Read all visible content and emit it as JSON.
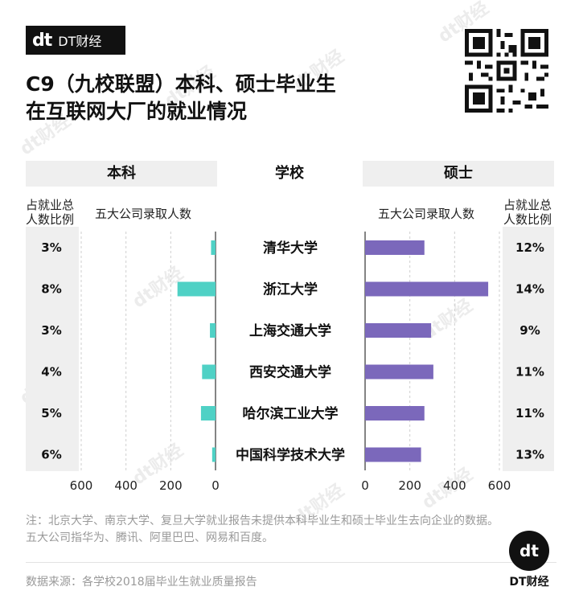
{
  "brand": {
    "mark": "dt",
    "name": "DT财经"
  },
  "title_lines": [
    "C9（九校联盟）本科、硕士毕业生",
    "在互联网大厂的就业情况"
  ],
  "watermark": "dt财经",
  "headers": {
    "left": "本科",
    "middle": "学校",
    "right": "硕士"
  },
  "subheaders": {
    "left_share_line1": "占就业总",
    "left_share_line2": "人数比例",
    "left_count": "五大公司录取人数",
    "right_count": "五大公司录取人数",
    "right_share_line1": "占就业总",
    "right_share_line2": "人数比例"
  },
  "colors": {
    "undergrad": "#4fd1c5",
    "master": "#7b68bb",
    "band": "#efefef"
  },
  "chart_data": {
    "type": "bar",
    "layout": "back-to-back",
    "categories": [
      "清华大学",
      "浙江大学",
      "上海交通大学",
      "西安交通大学",
      "哈尔滨工业大学",
      "中国科学技术大学"
    ],
    "series": [
      {
        "name": "本科",
        "values": [
          20,
          170,
          25,
          60,
          65,
          15
        ],
        "share": [
          "3%",
          "8%",
          "3%",
          "4%",
          "5%",
          "6%"
        ]
      },
      {
        "name": "硕士",
        "values": [
          265,
          550,
          295,
          305,
          265,
          250
        ],
        "share": [
          "12%",
          "14%",
          "9%",
          "11%",
          "11%",
          "13%"
        ]
      }
    ],
    "left_axis": {
      "ticks": [
        "600",
        "400",
        "200",
        "0"
      ],
      "range": [
        600,
        0
      ]
    },
    "right_axis": {
      "ticks": [
        "0",
        "200",
        "400",
        "600"
      ],
      "range": [
        0,
        600
      ]
    },
    "grid": true
  },
  "note": "注：北京大学、南京大学、复旦大学就业报告未提供本科毕业生和硕士毕业生去向企业的数据。五大公司指华为、腾讯、阿里巴巴、网易和百度。",
  "source": "数据来源：各学校2018届毕业生就业质量报告",
  "footer_brand": "DT财经"
}
